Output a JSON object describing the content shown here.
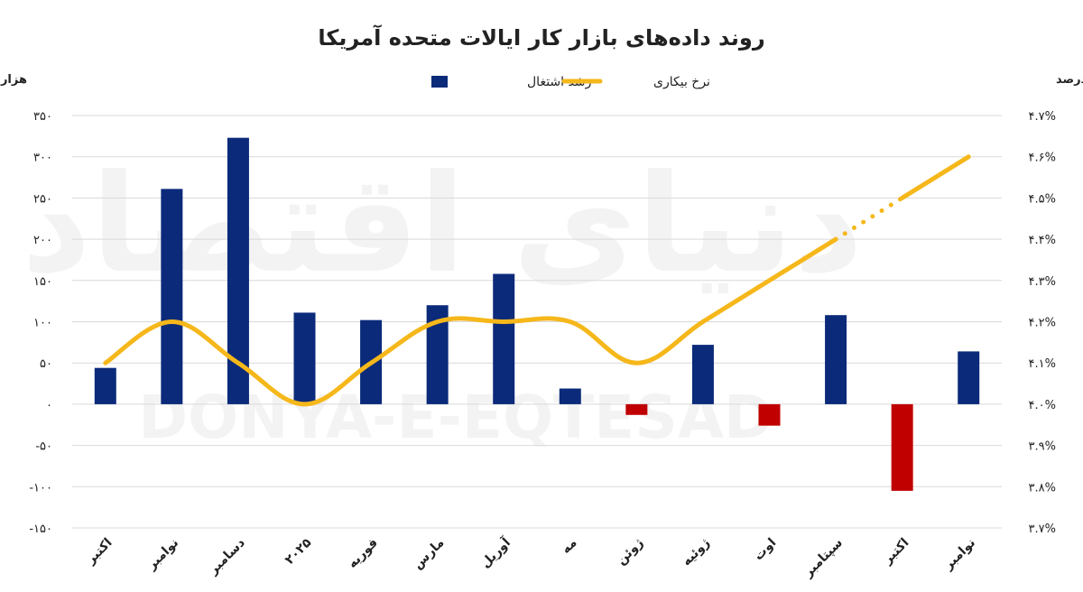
{
  "chart_data": {
    "type": "bar",
    "title": "روند داده‌های بازار کار ایالات متحده آمریکا",
    "categories": [
      "اکتبر",
      "نوامبر",
      "دسامبر",
      "۲۰۲۵",
      "فوریه",
      "مارس",
      "آوریل",
      "مه",
      "ژوئن",
      "ژوئیه",
      "اوت",
      "سپتامبر",
      "اکتبر",
      "نوامبر"
    ],
    "series": [
      {
        "name": "رشد اشتغال",
        "type": "bar",
        "axis": "left",
        "values": [
          44,
          261,
          323,
          111,
          102,
          120,
          158,
          19,
          -13,
          72,
          -26,
          108,
          -105,
          64
        ],
        "color": "#0b2a7a",
        "negative_color": "#c00000"
      },
      {
        "name": "نرخ بیکاری",
        "type": "line",
        "axis": "right",
        "values": [
          4.1,
          4.2,
          4.1,
          4.0,
          4.1,
          4.2,
          4.2,
          4.2,
          4.1,
          4.2,
          4.3,
          4.4,
          4.5,
          4.6
        ],
        "missing_segment": [
          11,
          12
        ],
        "color": "#f5b71a"
      }
    ],
    "y_left": {
      "label": "هزار نفر",
      "range": [
        -150,
        350
      ],
      "ticks": [
        "-۱۵۰",
        "-۱۰۰",
        "-۵۰",
        "۰",
        "۵۰",
        "۱۰۰",
        "۱۵۰",
        "۲۰۰",
        "۲۵۰",
        "۳۰۰",
        "۳۵۰"
      ]
    },
    "y_right": {
      "label": "درصد",
      "range": [
        3.7,
        4.7
      ],
      "ticks": [
        "۳.۷%",
        "۳.۸%",
        "۳.۹%",
        "۴.۰%",
        "۴.۱%",
        "۴.۲%",
        "۴.۳%",
        "۴.۴%",
        "۴.۵%",
        "۴.۶%",
        "۴.۷%"
      ]
    },
    "legend_position": "top",
    "grid": true,
    "gridline_color": "#d9d9d9",
    "watermark": {
      "text_fa": "دنیای اقتصاد",
      "text_en": "DONYA-E-EQTESAD"
    }
  }
}
